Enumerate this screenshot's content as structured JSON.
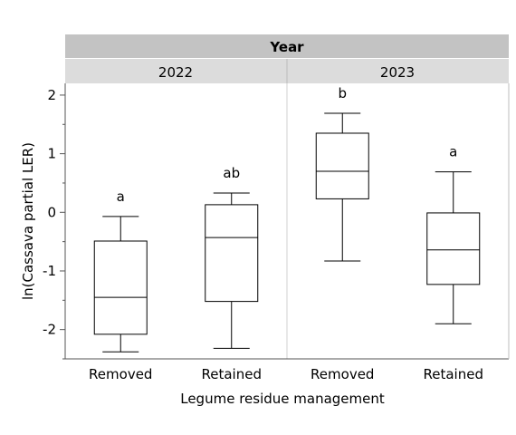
{
  "chart_data": {
    "type": "box",
    "group_header": "Year",
    "panels": [
      {
        "label": "2022",
        "boxes": [
          {
            "category": "Removed",
            "min": -2.38,
            "q1": -2.08,
            "median": -1.45,
            "q3": -0.49,
            "max": -0.07,
            "letter": "a"
          },
          {
            "category": "Retained",
            "min": -2.32,
            "q1": -1.52,
            "median": -0.43,
            "q3": 0.13,
            "max": 0.33,
            "letter": "ab"
          }
        ]
      },
      {
        "label": "2023",
        "boxes": [
          {
            "category": "Removed",
            "min": -0.83,
            "q1": 0.23,
            "median": 0.7,
            "q3": 1.35,
            "max": 1.69,
            "letter": "b"
          },
          {
            "category": "Retained",
            "min": -1.9,
            "q1": -1.23,
            "median": -0.64,
            "q3": -0.01,
            "max": 0.69,
            "letter": "a"
          }
        ]
      }
    ],
    "ylabel": "ln(Cassava partial LER)",
    "xlabel": "Legume residue management",
    "ylim": [
      -2.5,
      2.2
    ],
    "yticks": [
      2,
      1,
      0,
      -1,
      -2
    ],
    "grid": false
  }
}
